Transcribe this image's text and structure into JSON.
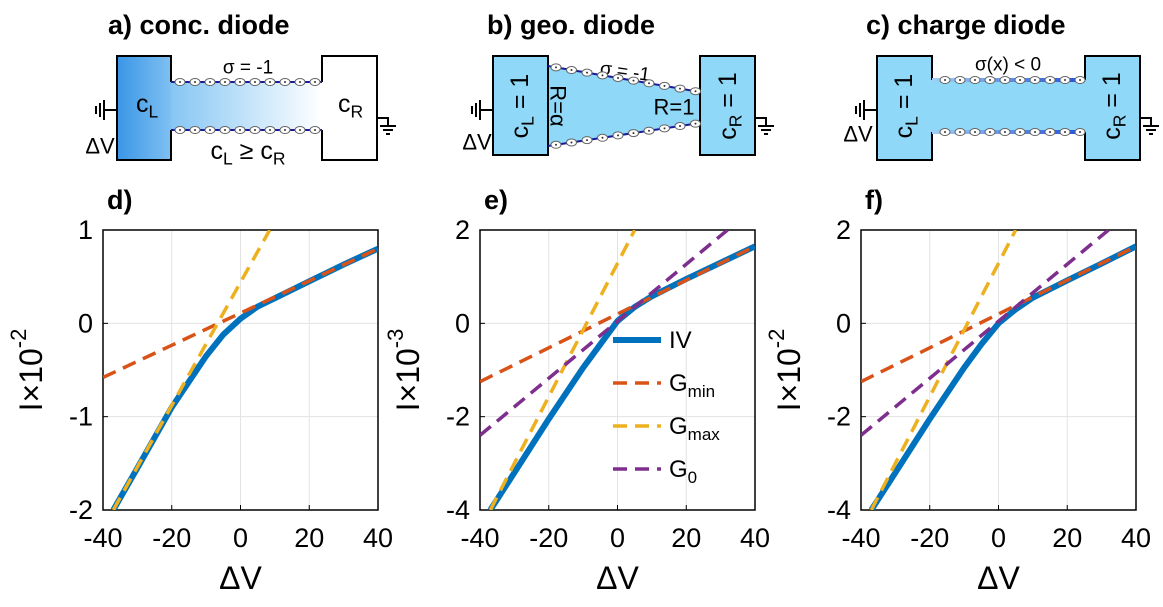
{
  "diagrams": [
    {
      "title": "a) conc. diode",
      "sigma": "σ = -1",
      "left": [
        "c",
        "L"
      ],
      "right": [
        "c",
        "R"
      ],
      "voltage": "ΔV",
      "relation": [
        "c",
        "L",
        " ≥ c",
        "R"
      ]
    },
    {
      "title": "b) geo. diode",
      "sigma": "σ = -1",
      "left": [
        "c",
        "L",
        " = 1"
      ],
      "right": [
        "c",
        "R",
        " = 1"
      ],
      "left_radius": "R=α",
      "right_radius": "R=1",
      "voltage": "ΔV"
    },
    {
      "title": "c) charge diode",
      "sigma": "σ(x) < 0",
      "left": [
        "c",
        "L",
        " = 1"
      ],
      "right": [
        "c",
        "R",
        " = 1"
      ],
      "voltage": "ΔV"
    }
  ],
  "chart_data": [
    {
      "type": "line",
      "panel": "d)",
      "xlabel": "ΔV",
      "ylabel": {
        "text": "I×10",
        "exponent": "-2"
      },
      "xlim": [
        -40,
        40
      ],
      "xticks": [
        -40,
        -20,
        0,
        20,
        40
      ],
      "ylim": [
        -2,
        1
      ],
      "yticks": [
        -2,
        -1,
        0,
        1
      ],
      "grid": true,
      "series": [
        {
          "name": "IV",
          "color": "#0072BD",
          "style": "solid",
          "x": [
            -37,
            -30,
            -20,
            -10,
            -5,
            0,
            5,
            10,
            20,
            30,
            40
          ],
          "values": [
            -2,
            -1.55,
            -0.9,
            -0.35,
            -0.12,
            0.05,
            0.18,
            0.27,
            0.45,
            0.63,
            0.8
          ]
        },
        {
          "name": "G",
          "subscript": "min",
          "color": "#D95319",
          "style": "dashed",
          "x": [
            -40,
            40
          ],
          "values": [
            -0.58,
            0.8
          ]
        },
        {
          "name": "G",
          "subscript": "max",
          "color": "#EDB120",
          "style": "dashed",
          "x": [
            -37,
            8.5
          ],
          "values": [
            -2,
            1
          ]
        }
      ]
    },
    {
      "type": "line",
      "panel": "e)",
      "xlabel": "ΔV",
      "ylabel": {
        "text": "I×10",
        "exponent": "-3"
      },
      "xlim": [
        -40,
        40
      ],
      "xticks": [
        -40,
        -20,
        0,
        20,
        40
      ],
      "ylim": [
        -4,
        2
      ],
      "yticks": [
        -4,
        -2,
        0,
        2
      ],
      "grid": true,
      "legend": "center right",
      "series": [
        {
          "name": "IV",
          "color": "#0072BD",
          "style": "solid",
          "x": [
            -37,
            -30,
            -20,
            -10,
            -5,
            0,
            5,
            10,
            20,
            30,
            40
          ],
          "values": [
            -4,
            -3.2,
            -2.05,
            -0.95,
            -0.45,
            0.05,
            0.35,
            0.58,
            0.95,
            1.3,
            1.65
          ]
        },
        {
          "name": "G",
          "subscript": "min",
          "color": "#D95319",
          "style": "dashed",
          "x": [
            -40,
            40
          ],
          "values": [
            -1.25,
            1.65
          ]
        },
        {
          "name": "G",
          "subscript": "max",
          "color": "#EDB120",
          "style": "dashed",
          "x": [
            -37,
            5
          ],
          "values": [
            -4,
            2
          ]
        },
        {
          "name": "G",
          "subscript": "0",
          "color": "#7E2F8E",
          "style": "dashed",
          "x": [
            -40,
            32
          ],
          "values": [
            -2.4,
            2
          ]
        }
      ]
    },
    {
      "type": "line",
      "panel": "f)",
      "xlabel": "ΔV",
      "ylabel": {
        "text": "I×10",
        "exponent": "-2"
      },
      "xlim": [
        -40,
        40
      ],
      "xticks": [
        -40,
        -20,
        0,
        20,
        40
      ],
      "ylim": [
        -4,
        2
      ],
      "yticks": [
        -4,
        -2,
        0,
        2
      ],
      "grid": true,
      "series": [
        {
          "name": "IV",
          "color": "#0072BD",
          "style": "solid",
          "x": [
            -37,
            -30,
            -20,
            -10,
            -5,
            0,
            5,
            10,
            20,
            30,
            40
          ],
          "values": [
            -4,
            -3.2,
            -2.05,
            -0.95,
            -0.45,
            0,
            0.3,
            0.55,
            0.92,
            1.28,
            1.65
          ]
        },
        {
          "name": "G",
          "subscript": "min",
          "color": "#D95319",
          "style": "dashed",
          "x": [
            -40,
            40
          ],
          "values": [
            -1.25,
            1.65
          ]
        },
        {
          "name": "G",
          "subscript": "max",
          "color": "#EDB120",
          "style": "dashed",
          "x": [
            -37,
            5
          ],
          "values": [
            -4,
            2
          ]
        },
        {
          "name": "G",
          "subscript": "0",
          "color": "#7E2F8E",
          "style": "dashed",
          "x": [
            -40,
            32
          ],
          "values": [
            -2.4,
            2
          ]
        }
      ]
    }
  ]
}
